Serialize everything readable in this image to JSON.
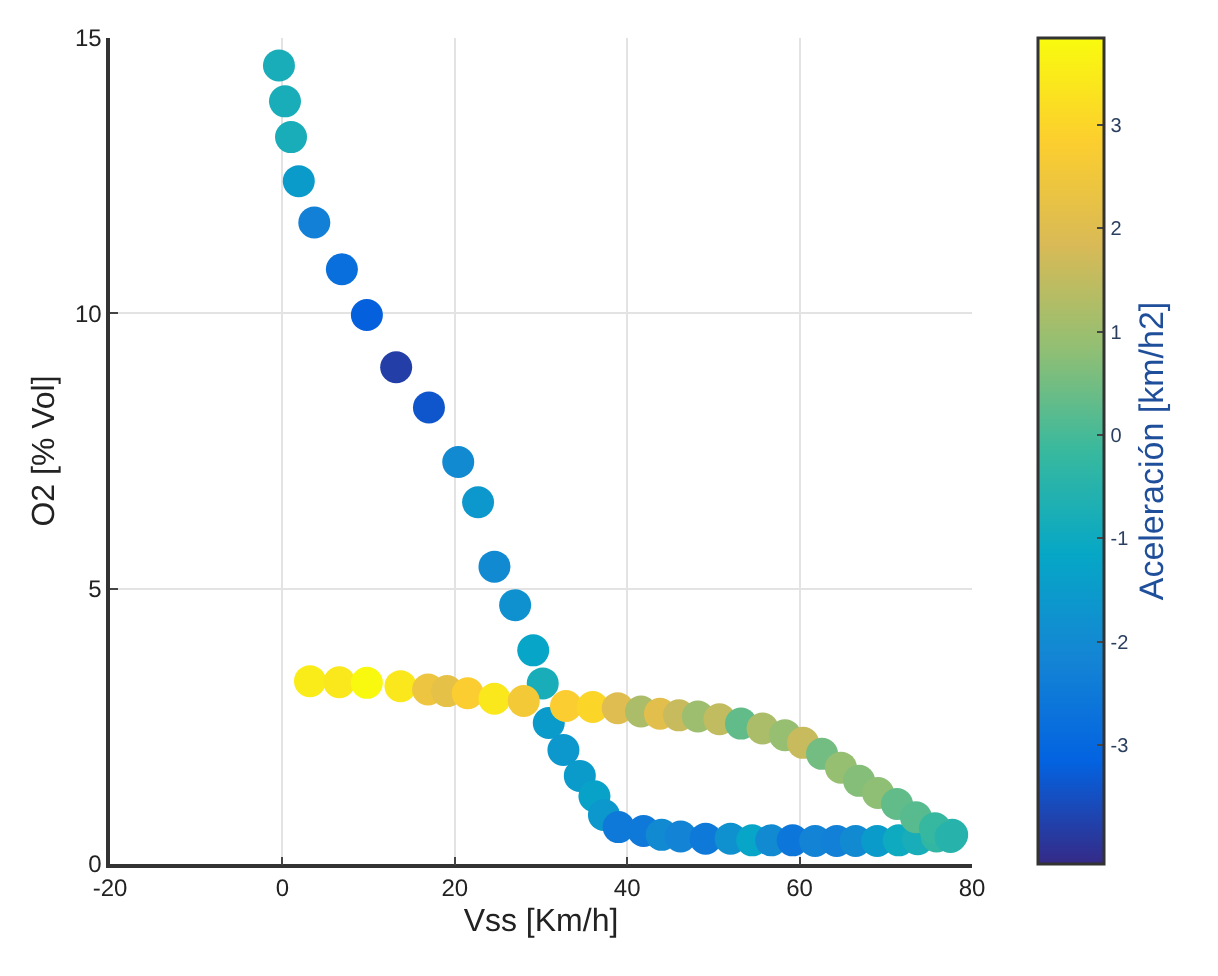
{
  "chart_data": {
    "type": "scatter",
    "xlabel": "Vss [Km/h]",
    "ylabel": "O2 [% Vol]",
    "clabel": "Aceleración [km/h2]",
    "xlim": [
      -20,
      80
    ],
    "xticks": [
      -20,
      0,
      20,
      40,
      60,
      80
    ],
    "ylim": [
      0,
      15
    ],
    "yticks": [
      0,
      5,
      10,
      15
    ],
    "clim": [
      -4.15,
      3.84
    ],
    "cticks": [
      -3,
      -2,
      -1,
      0,
      1,
      2,
      3
    ],
    "grid": true,
    "marker": "circle",
    "x": [
      -0.4,
      0.3,
      1.0,
      1.9,
      3.7,
      6.9,
      9.8,
      13.2,
      17.0,
      20.4,
      22.7,
      24.6,
      27.0,
      29.1,
      30.2,
      30.9,
      32.6,
      34.5,
      36.2,
      37.3,
      39.0,
      41.9,
      44.0,
      46.2,
      49.1,
      52.0,
      54.5,
      56.7,
      59.2,
      61.8,
      64.3,
      66.5,
      69.0,
      71.5,
      73.7,
      75.9,
      77.7,
      3.2,
      6.6,
      9.8,
      13.7,
      16.9,
      19.1,
      21.5,
      24.6,
      28.0,
      32.9,
      36.0,
      38.9,
      41.6,
      43.8,
      46.0,
      48.2,
      50.7,
      53.2,
      55.7,
      58.3,
      60.4,
      62.6,
      64.8,
      66.9,
      69.1,
      71.3,
      73.5,
      75.7,
      77.5
    ],
    "values": [
      14.5,
      13.85,
      13.2,
      12.4,
      11.65,
      10.8,
      9.97,
      9.02,
      8.29,
      7.3,
      6.57,
      5.4,
      4.7,
      3.88,
      3.28,
      2.56,
      2.07,
      1.6,
      1.23,
      0.89,
      0.67,
      0.6,
      0.53,
      0.5,
      0.46,
      0.46,
      0.43,
      0.43,
      0.43,
      0.42,
      0.42,
      0.42,
      0.42,
      0.43,
      0.45,
      0.5,
      0.53,
      3.32,
      3.3,
      3.29,
      3.23,
      3.17,
      3.14,
      3.1,
      3.0,
      2.96,
      2.87,
      2.85,
      2.83,
      2.77,
      2.73,
      2.7,
      2.68,
      2.63,
      2.55,
      2.46,
      2.34,
      2.2,
      2.0,
      1.75,
      1.51,
      1.29,
      1.09,
      0.85,
      0.65,
      0.49
    ],
    "cvalues": [
      -0.8,
      -0.8,
      -0.8,
      -1.5,
      -2.3,
      -2.8,
      -3.2,
      -3.8,
      -3.4,
      -2.0,
      -1.6,
      -2.0,
      -1.8,
      -1.2,
      -0.8,
      -1.5,
      -1.6,
      -1.5,
      -1.3,
      -1.6,
      -2.5,
      -2.5,
      -2.0,
      -2.2,
      -2.5,
      -1.8,
      -1.2,
      -2.0,
      -2.6,
      -2.2,
      -2.3,
      -2.0,
      -1.5,
      -1.0,
      -0.8,
      -0.3,
      -0.5,
      3.5,
      3.4,
      3.8,
      3.4,
      2.4,
      2.2,
      2.8,
      3.4,
      2.6,
      2.8,
      3.0,
      2.0,
      1.2,
      2.1,
      1.6,
      1.0,
      1.5,
      0.3,
      1.2,
      0.9,
      1.6,
      0.5,
      0.9,
      0.7,
      0.8,
      0.3,
      0.2,
      -0.2,
      -0.5
    ]
  }
}
